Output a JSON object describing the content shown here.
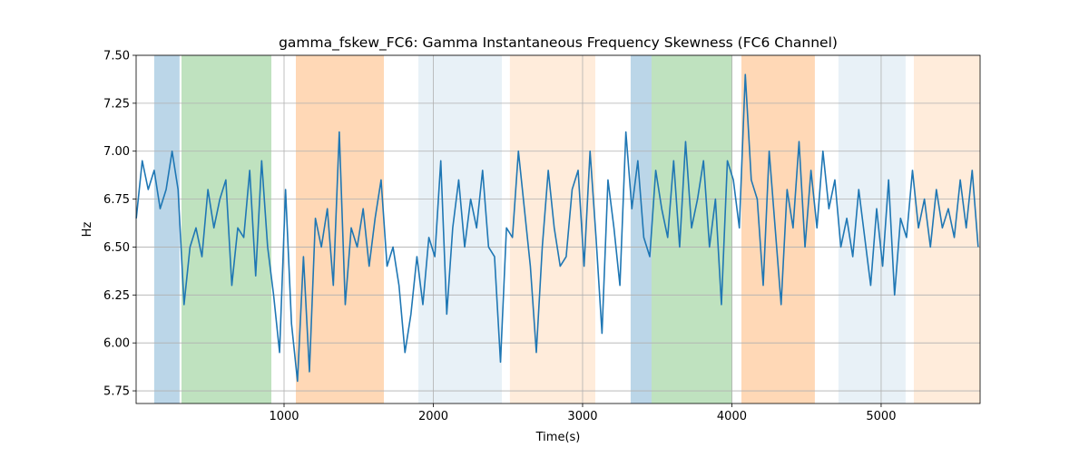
{
  "chart_data": {
    "type": "line",
    "title": "gamma_fskew_FC6: Gamma Instantaneous Frequency Skewness (FC6 Channel)",
    "x_label": "Time(s)",
    "y_label": "Hz",
    "x": [
      10,
      50,
      90,
      130,
      170,
      210,
      250,
      290,
      330,
      370,
      410,
      450,
      490,
      530,
      570,
      610,
      650,
      690,
      730,
      770,
      810,
      850,
      890,
      930,
      970,
      1010,
      1050,
      1090,
      1130,
      1170,
      1210,
      1250,
      1290,
      1330,
      1370,
      1410,
      1450,
      1490,
      1530,
      1570,
      1610,
      1650,
      1690,
      1730,
      1770,
      1810,
      1850,
      1890,
      1930,
      1970,
      2010,
      2050,
      2090,
      2130,
      2170,
      2210,
      2250,
      2290,
      2330,
      2370,
      2410,
      2450,
      2490,
      2530,
      2570,
      2610,
      2650,
      2690,
      2730,
      2770,
      2810,
      2850,
      2890,
      2930,
      2970,
      3010,
      3050,
      3090,
      3130,
      3170,
      3210,
      3250,
      3290,
      3330,
      3370,
      3410,
      3450,
      3490,
      3530,
      3570,
      3610,
      3650,
      3690,
      3730,
      3770,
      3810,
      3850,
      3890,
      3930,
      3970,
      4010,
      4050,
      4090,
      4130,
      4170,
      4210,
      4250,
      4290,
      4330,
      4370,
      4410,
      4450,
      4490,
      4530,
      4570,
      4610,
      4650,
      4690,
      4730,
      4770,
      4810,
      4850,
      4890,
      4930,
      4970,
      5010,
      5050,
      5090,
      5130,
      5170,
      5210,
      5250,
      5290,
      5330,
      5370,
      5410,
      5450,
      5490,
      5530,
      5570,
      5610,
      5650
    ],
    "series": [
      {
        "color": "#1f77b4",
        "values": [
          6.65,
          6.95,
          6.8,
          6.9,
          6.7,
          6.8,
          7.0,
          6.8,
          6.2,
          6.5,
          6.6,
          6.45,
          6.8,
          6.6,
          6.75,
          6.85,
          6.3,
          6.6,
          6.55,
          6.9,
          6.35,
          6.95,
          6.5,
          6.25,
          5.95,
          6.8,
          6.1,
          5.8,
          6.45,
          5.85,
          6.65,
          6.5,
          6.7,
          6.3,
          7.1,
          6.2,
          6.6,
          6.5,
          6.7,
          6.4,
          6.65,
          6.85,
          6.4,
          6.5,
          6.3,
          5.95,
          6.15,
          6.45,
          6.2,
          6.55,
          6.45,
          6.95,
          6.15,
          6.6,
          6.85,
          6.5,
          6.75,
          6.6,
          6.9,
          6.5,
          6.45,
          5.9,
          6.6,
          6.55,
          7.0,
          6.7,
          6.4,
          5.95,
          6.5,
          6.9,
          6.6,
          6.4,
          6.45,
          6.8,
          6.9,
          6.4,
          7.0,
          6.55,
          6.05,
          6.85,
          6.6,
          6.3,
          7.1,
          6.7,
          6.95,
          6.55,
          6.45,
          6.9,
          6.7,
          6.55,
          6.95,
          6.5,
          7.05,
          6.6,
          6.75,
          6.95,
          6.5,
          6.75,
          6.2,
          6.95,
          6.85,
          6.6,
          7.4,
          6.85,
          6.75,
          6.3,
          7.0,
          6.6,
          6.2,
          6.8,
          6.6,
          7.05,
          6.5,
          6.9,
          6.6,
          7.0,
          6.7,
          6.85,
          6.5,
          6.65,
          6.45,
          6.8,
          6.55,
          6.3,
          6.7,
          6.4,
          6.85,
          6.25,
          6.65,
          6.55,
          6.9,
          6.6,
          6.75,
          6.5,
          6.8,
          6.6,
          6.7,
          6.55,
          6.85,
          6.6,
          6.9,
          6.5
        ]
      }
    ],
    "spans": [
      {
        "x0": 130,
        "x1": 300,
        "color": "#1f77b4",
        "alpha": 0.3
      },
      {
        "x0": 313,
        "x1": 915,
        "color": "#2ca02c",
        "alpha": 0.3
      },
      {
        "x0": 1079,
        "x1": 1669,
        "color": "#ff7f0e",
        "alpha": 0.3
      },
      {
        "x0": 1900,
        "x1": 2459,
        "color": "#1f77b4",
        "alpha": 0.1
      },
      {
        "x0": 2513,
        "x1": 3085,
        "color": "#ff7f0e",
        "alpha": 0.15
      },
      {
        "x0": 3322,
        "x1": 3462,
        "color": "#1f77b4",
        "alpha": 0.3
      },
      {
        "x0": 3462,
        "x1": 4003,
        "color": "#2ca02c",
        "alpha": 0.3
      },
      {
        "x0": 4064,
        "x1": 4556,
        "color": "#ff7f0e",
        "alpha": 0.3
      },
      {
        "x0": 4714,
        "x1": 5164,
        "color": "#1f77b4",
        "alpha": 0.1
      },
      {
        "x0": 5219,
        "x1": 5663,
        "color": "#ff7f0e",
        "alpha": 0.15
      }
    ],
    "xlim": [
      9,
      5663
    ],
    "ylim": [
      5.684,
      7.5
    ],
    "xticks": [
      1000,
      2000,
      3000,
      4000,
      5000
    ],
    "yticks": [
      5.75,
      {
        "value": 6,
        "label": "6.00"
      },
      6.25,
      {
        "value": 6.5,
        "label": "6.50"
      },
      6.75,
      {
        "value": 7,
        "label": "7.00"
      },
      7.25,
      {
        "value": 7.5,
        "label": "7.50"
      }
    ],
    "grid": true
  }
}
